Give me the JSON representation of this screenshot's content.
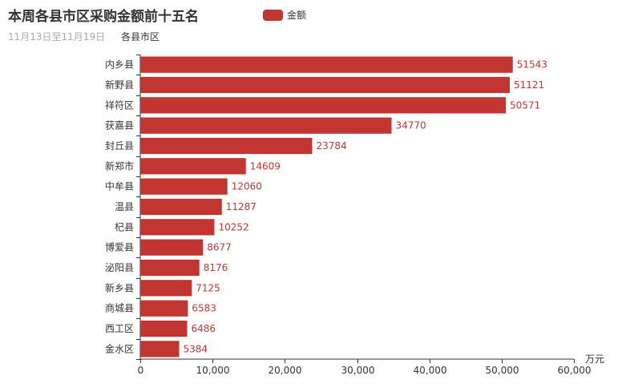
{
  "title": "本周各县市区采购金额前十五名",
  "subtitle": "11月13日至11月19日",
  "colors": {
    "bar": "#c23531",
    "axis": "#333333"
  },
  "chart_data": {
    "type": "bar",
    "orientation": "horizontal",
    "categories": [
      "内乡县",
      "新野县",
      "祥符区",
      "获嘉县",
      "封丘县",
      "新郑市",
      "中牟县",
      "温县",
      "杞县",
      "博爱县",
      "泌阳县",
      "新乡县",
      "商城县",
      "西工区",
      "金水区"
    ],
    "series": [
      {
        "name": "金额",
        "values": [
          51543,
          51121,
          50571,
          34770,
          23784,
          14609,
          12060,
          11287,
          10252,
          8677,
          8176,
          7125,
          6583,
          6486,
          5384
        ]
      }
    ],
    "xlim": [
      0,
      60000
    ],
    "xticks": [
      0,
      10000,
      20000,
      30000,
      40000,
      50000,
      60000
    ],
    "xtick_labels": [
      "0",
      "10,000",
      "20,000",
      "30,000",
      "40,000",
      "50,000",
      "60,000"
    ],
    "xlabel": "万元",
    "ylabel": "各县市区",
    "legend": "top-center",
    "grid": false
  }
}
